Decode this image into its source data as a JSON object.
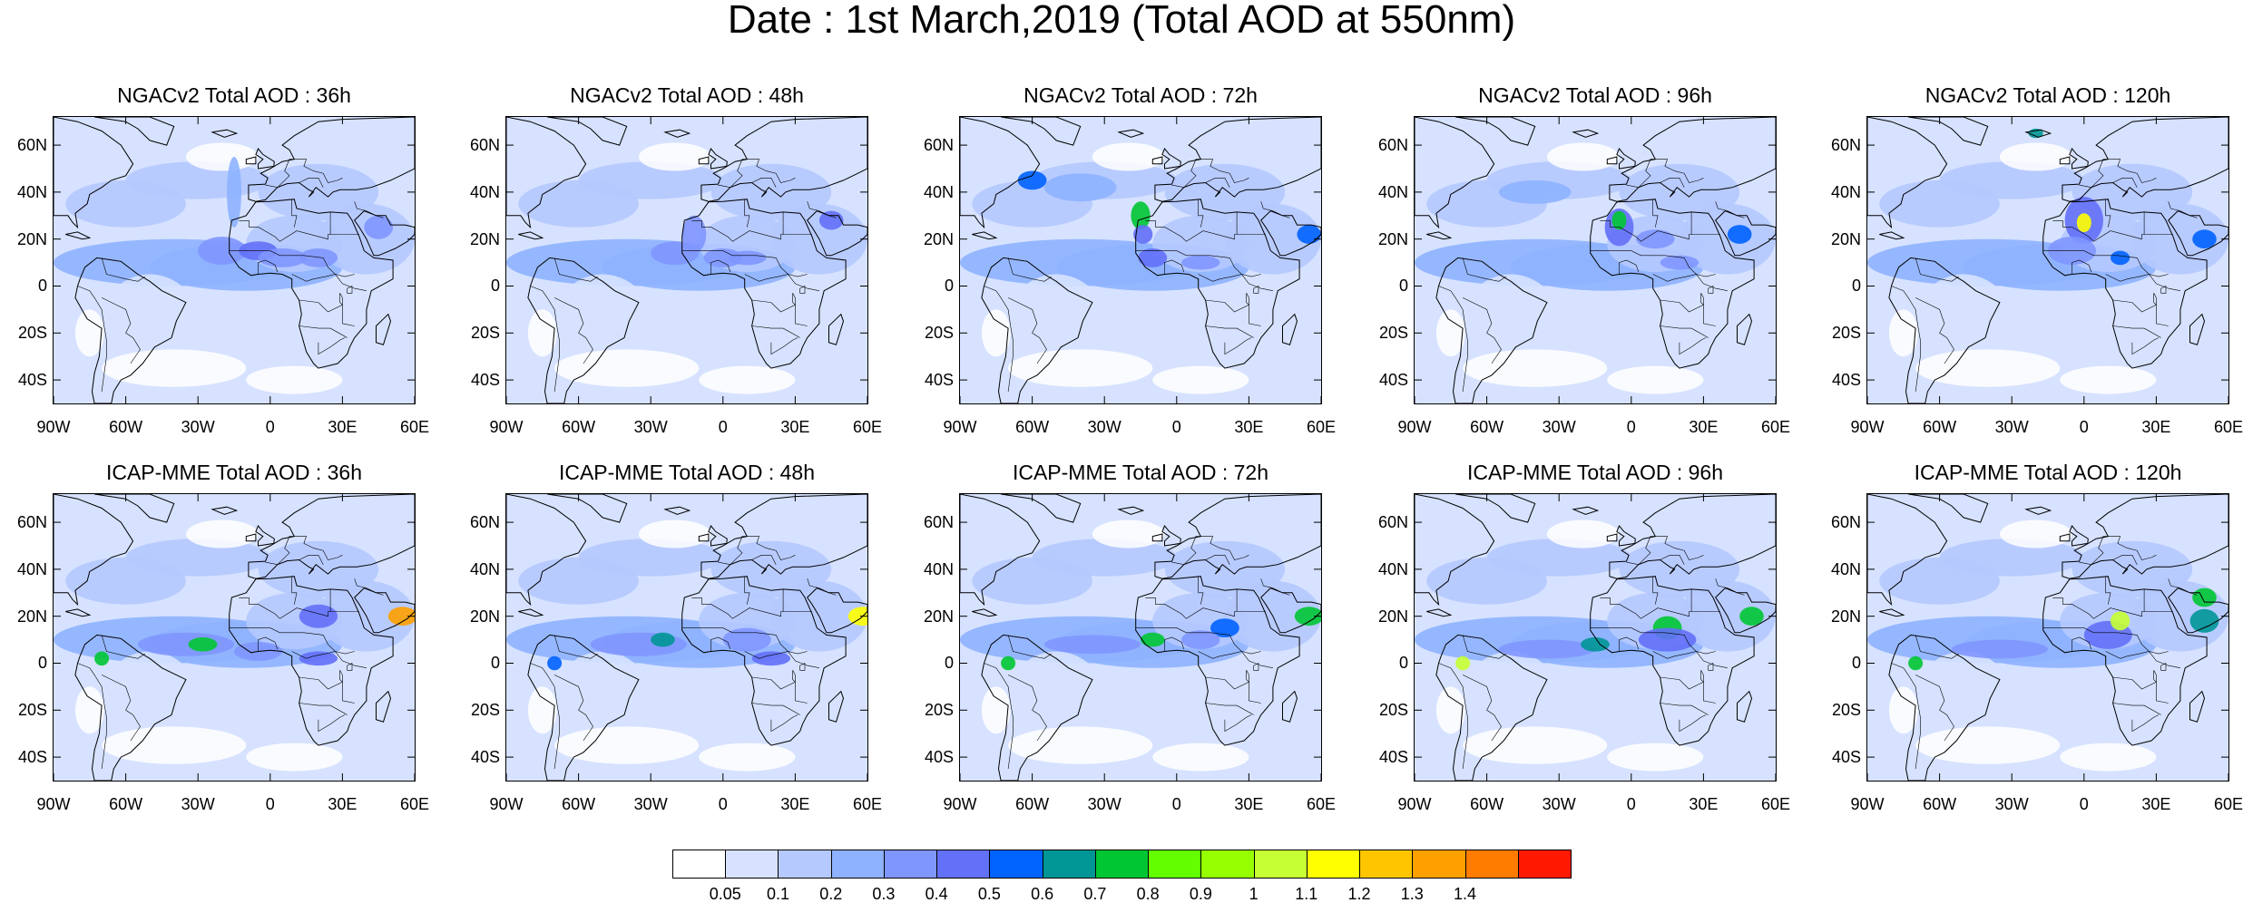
{
  "title": "Date : 1st March,2019 (Total AOD at 550nm)",
  "panels": [
    {
      "title": "NGACv2 Total AOD : 36h",
      "model": "NGACv2",
      "lead": "36h"
    },
    {
      "title": "NGACv2 Total AOD : 48h",
      "model": "NGACv2",
      "lead": "48h"
    },
    {
      "title": "NGACv2 Total AOD : 72h",
      "model": "NGACv2",
      "lead": "72h"
    },
    {
      "title": "NGACv2 Total AOD : 96h",
      "model": "NGACv2",
      "lead": "96h"
    },
    {
      "title": "NGACv2 Total AOD : 120h",
      "model": "NGACv2",
      "lead": "120h"
    },
    {
      "title": "ICAP-MME Total AOD : 36h",
      "model": "ICAP-MME",
      "lead": "36h"
    },
    {
      "title": "ICAP-MME Total AOD : 48h",
      "model": "ICAP-MME",
      "lead": "48h"
    },
    {
      "title": "ICAP-MME Total AOD : 72h",
      "model": "ICAP-MME",
      "lead": "72h"
    },
    {
      "title": "ICAP-MME Total AOD : 96h",
      "model": "ICAP-MME",
      "lead": "96h"
    },
    {
      "title": "ICAP-MME Total AOD : 120h",
      "model": "ICAP-MME",
      "lead": "120h"
    }
  ],
  "lat_labels": [
    "60N",
    "40N",
    "20N",
    "0",
    "20S",
    "40S"
  ],
  "lat_values": [
    60,
    40,
    20,
    0,
    -20,
    -40
  ],
  "lon_labels": [
    "90W",
    "60W",
    "30W",
    "0",
    "30E",
    "60E"
  ],
  "lon_values": [
    -90,
    -60,
    -30,
    0,
    30,
    60
  ],
  "lon_range": [
    -90,
    60
  ],
  "lat_range": [
    -50,
    72
  ],
  "colorbar": {
    "labels": [
      "0.05",
      "0.1",
      "0.2",
      "0.3",
      "0.4",
      "0.5",
      "0.6",
      "0.7",
      "0.8",
      "0.9",
      "1",
      "1.1",
      "1.2",
      "1.3",
      "1.4"
    ],
    "colors": [
      "#ffffff",
      "#d6e2ff",
      "#b5c9ff",
      "#8eb2ff",
      "#7f96ff",
      "#6370f8",
      "#0062ff",
      "#009696",
      "#00c633",
      "#63ff00",
      "#96ff00",
      "#c6ff33",
      "#ffff00",
      "#ffc600",
      "#ffa000",
      "#ff7c00",
      "#ff1900"
    ]
  },
  "colors": {
    "low_aod": "#d6e2ff",
    "mid_aod": "#b5c9ff",
    "high_aod": "#7f96ff",
    "dust_peak": "#ffff00",
    "coastline": "#000000"
  }
}
